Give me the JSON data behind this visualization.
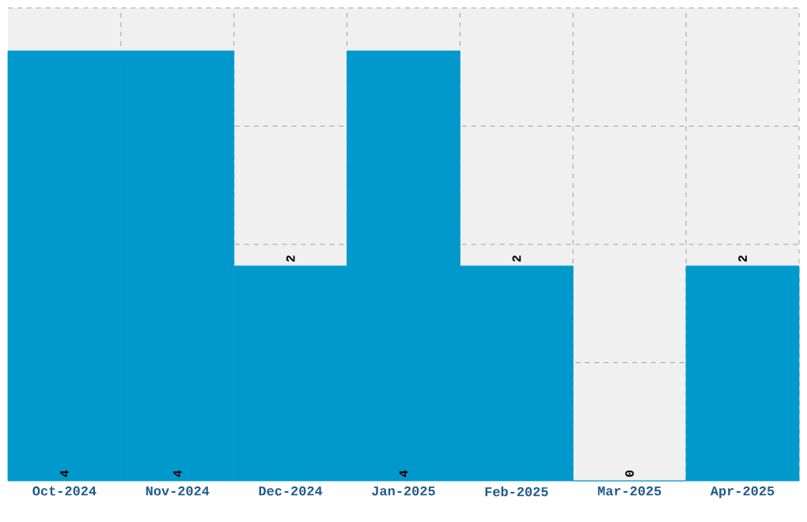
{
  "chart_data": {
    "type": "bar",
    "categories": [
      "Oct-2024",
      "Nov-2024",
      "Dec-2024",
      "Jan-2025",
      "Feb-2025",
      "Mar-2025",
      "Apr-2025"
    ],
    "values": [
      4,
      4,
      2,
      4,
      2,
      0,
      2
    ],
    "color": "#0099cc",
    "ylim": [
      0,
      4.4
    ],
    "yticks": [
      {
        "value": 1.1,
        "label": null
      },
      {
        "value": 2.2,
        "label": null
      },
      {
        "value": 3.3,
        "label": null
      },
      {
        "value": 4.4,
        "label": null
      }
    ],
    "tick_labels": "x",
    "grid": true,
    "data_labels": true
  }
}
